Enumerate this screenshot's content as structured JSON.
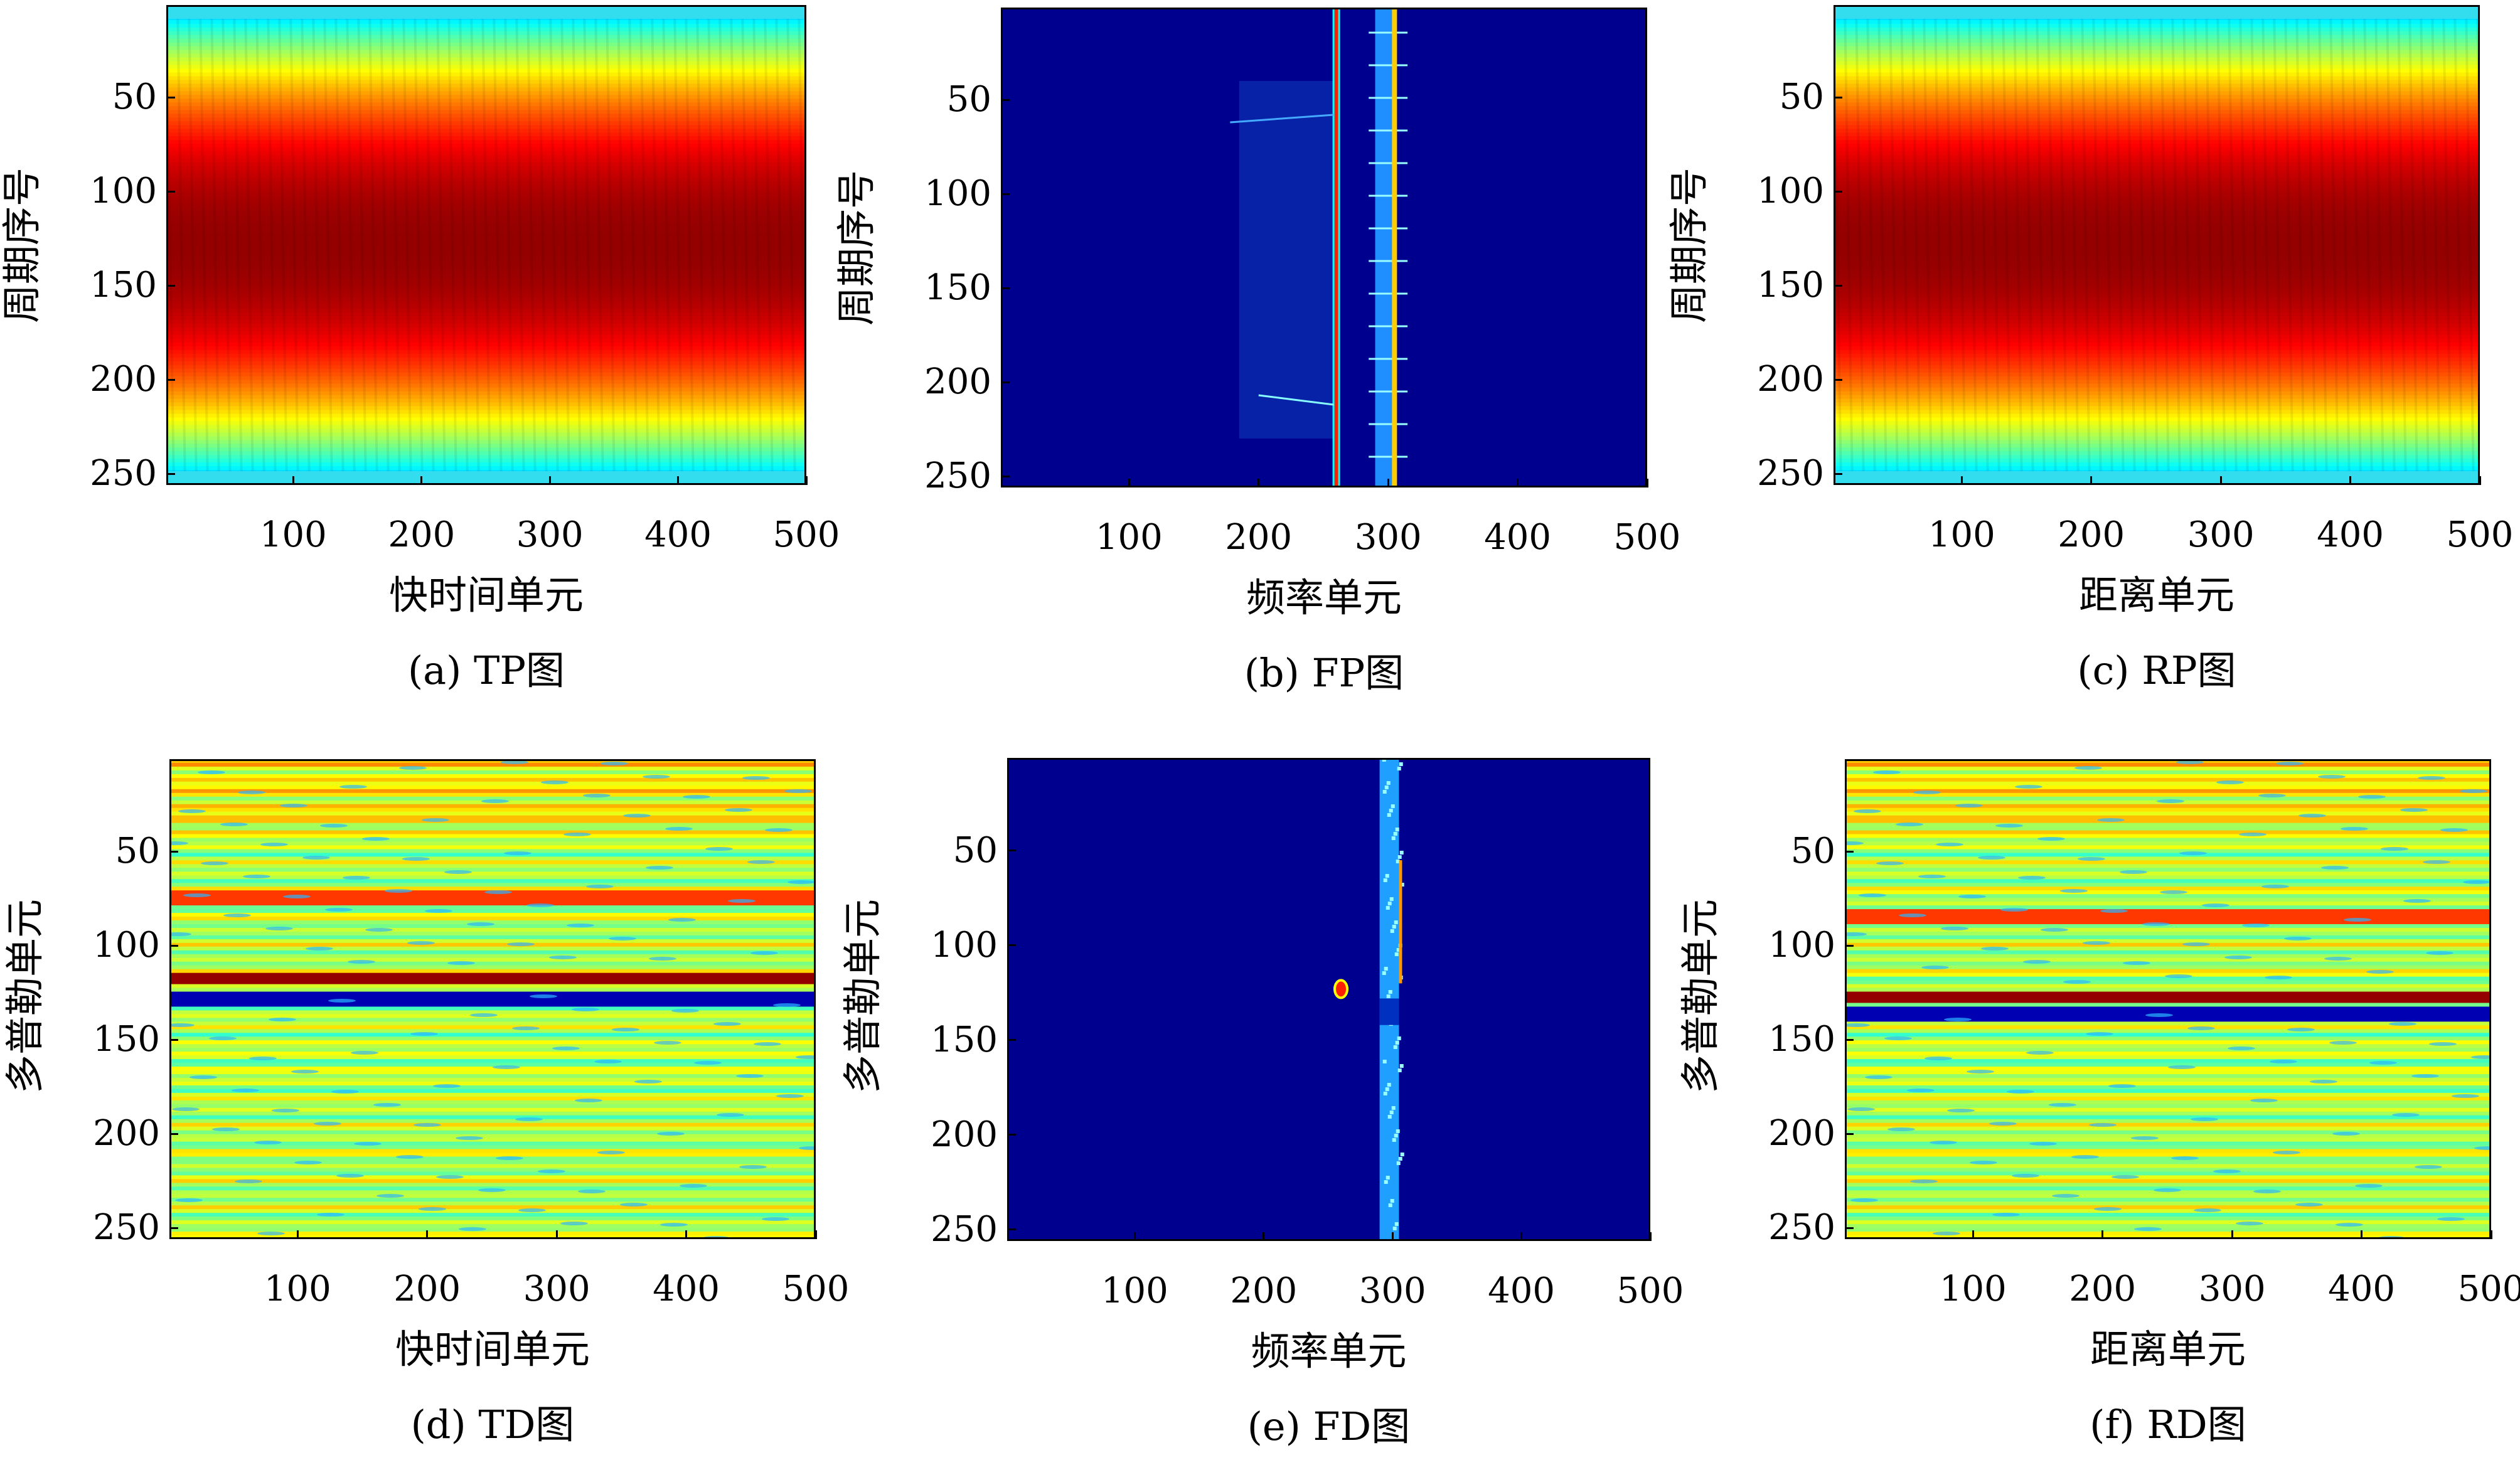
{
  "chart_data": [
    {
      "type": "heatmap",
      "panel": "a",
      "caption": "(a) TP图",
      "xlabel": "快时间单元",
      "ylabel": "周期序号",
      "xticks": [
        100,
        200,
        300,
        400,
        500
      ],
      "yticks": [
        50,
        100,
        150,
        200,
        250
      ],
      "xlim": [
        1,
        500
      ],
      "ylim": [
        1,
        256
      ],
      "description_values": {
        "pattern": "amplitude envelope",
        "peak_row": 128,
        "edge_rows": [
          1,
          256
        ]
      }
    },
    {
      "type": "heatmap",
      "panel": "b",
      "caption": "(b) FP图",
      "xlabel": "频率单元",
      "ylabel": "周期序号",
      "xticks": [
        100,
        200,
        300,
        400,
        500
      ],
      "yticks": [
        50,
        100,
        150,
        200,
        250
      ],
      "xlim": [
        1,
        500
      ],
      "ylim": [
        1,
        256
      ],
      "description_values": {
        "strong_column": 260,
        "cluster_columns": [
          290,
          305
        ]
      }
    },
    {
      "type": "heatmap",
      "panel": "c",
      "caption": "(c) RP图",
      "xlabel": "距离单元",
      "ylabel": "周期序号",
      "xticks": [
        100,
        200,
        300,
        400,
        500
      ],
      "yticks": [
        50,
        100,
        150,
        200,
        250
      ],
      "xlim": [
        1,
        500
      ],
      "ylim": [
        1,
        256
      ],
      "description_values": {
        "pattern": "amplitude envelope",
        "peak_row": 128
      }
    },
    {
      "type": "heatmap",
      "panel": "d",
      "caption": "(d) TD图",
      "xlabel": "快时间单元",
      "ylabel": "多普勒单元",
      "xticks": [
        100,
        200,
        300,
        400,
        500
      ],
      "yticks": [
        50,
        100,
        150,
        200,
        250
      ],
      "xlim": [
        1,
        500
      ],
      "ylim": [
        1,
        256
      ],
      "description_values": {
        "strong_row": 118,
        "null_row": 128,
        "secondary_row": 75
      }
    },
    {
      "type": "heatmap",
      "panel": "e",
      "caption": "(e) FD图",
      "xlabel": "频率单元",
      "ylabel": "多普勒单元",
      "xticks": [
        100,
        200,
        300,
        400,
        500
      ],
      "yticks": [
        50,
        100,
        150,
        200,
        250
      ],
      "xlim": [
        1,
        500
      ],
      "ylim": [
        1,
        256
      ],
      "description_values": {
        "band_columns": [
          290,
          305
        ],
        "spot": [
          260,
          123
        ]
      }
    },
    {
      "type": "heatmap",
      "panel": "f",
      "caption": "(f) RD图",
      "xlabel": "距离单元",
      "ylabel": "多普勒单元",
      "xticks": [
        100,
        200,
        300,
        400,
        500
      ],
      "yticks": [
        50,
        100,
        150,
        200,
        250
      ],
      "xlim": [
        1,
        500
      ],
      "ylim": [
        1,
        256
      ],
      "description_values": {
        "strong_row": 128,
        "null_row": 137,
        "secondary_row": 85
      }
    }
  ],
  "colors": {
    "background_dark_blue": "#00008f",
    "jet_colormap": [
      "#00008f",
      "#0000ff",
      "#00ffff",
      "#ffff00",
      "#ff0000",
      "#800000"
    ]
  }
}
